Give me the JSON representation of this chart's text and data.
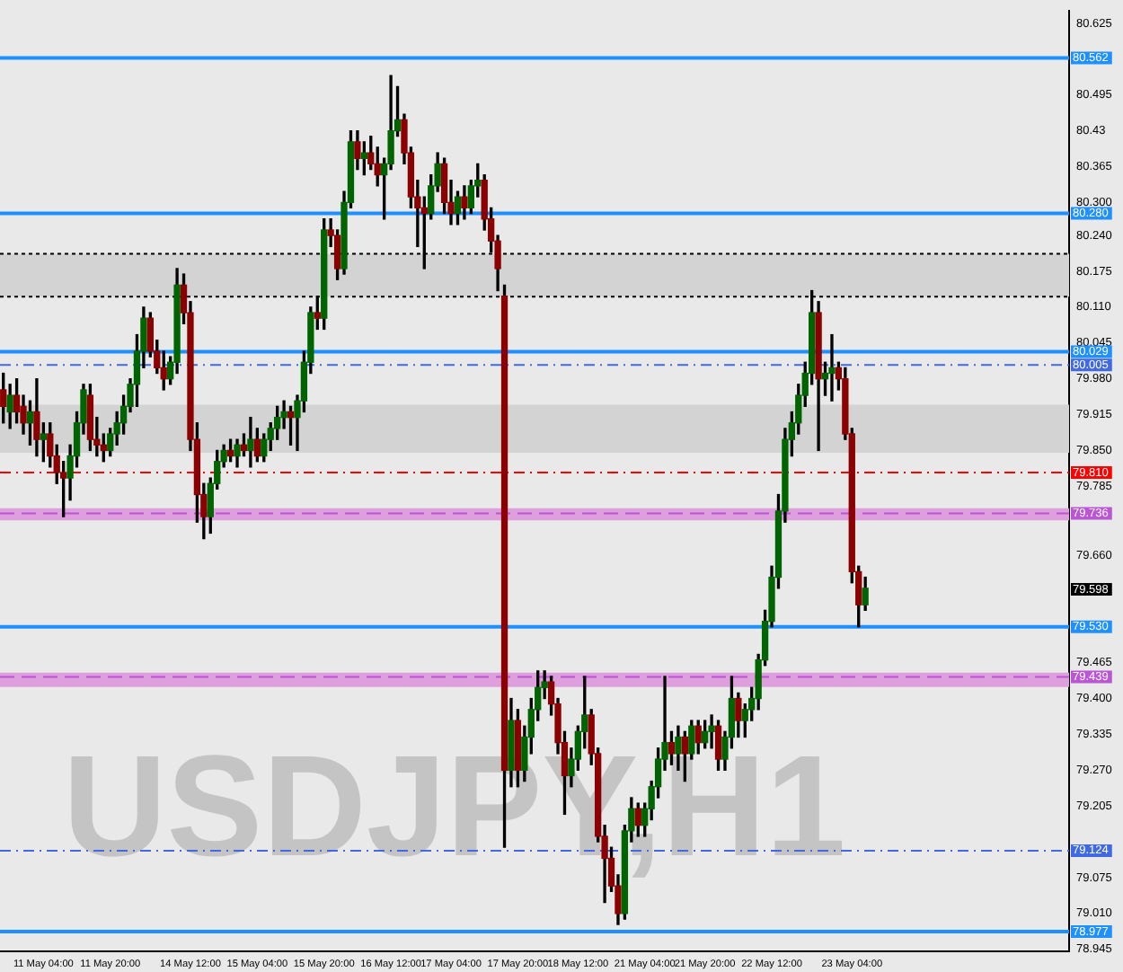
{
  "chart_data": {
    "type": "candlestick",
    "categories": [
      null,
      null,
      null,
      null,
      null,
      null,
      "11 May 04:00",
      null,
      null,
      null,
      null,
      null,
      null,
      null,
      null,
      null,
      "11 May 20:00",
      null,
      null,
      null,
      null,
      null,
      null,
      null,
      null,
      null,
      null,
      null,
      "14 May 12:00",
      null,
      null,
      null,
      null,
      null,
      null,
      null,
      null,
      null,
      "15 May 04:00",
      null,
      null,
      null,
      null,
      null,
      null,
      null,
      null,
      null,
      "15 May 20:00",
      null,
      null,
      null,
      null,
      null,
      null,
      null,
      null,
      null,
      "16 May 12:00",
      null,
      null,
      null,
      null,
      null,
      null,
      null,
      null,
      "17 May 04:00",
      null,
      null,
      null,
      null,
      null,
      null,
      null,
      null,
      null,
      "17 May 20:00",
      null,
      null,
      null,
      null,
      null,
      null,
      null,
      null,
      "18 May 12:00",
      null,
      null,
      null,
      null,
      null,
      null,
      null,
      null,
      null,
      "21 May 04:00",
      null,
      null,
      null,
      null,
      null,
      null,
      null,
      null,
      "21 May 20:00",
      null,
      null,
      null,
      null,
      null,
      null,
      null,
      null,
      null,
      "22 May 12:00",
      null,
      null,
      null,
      null,
      null,
      null,
      null,
      null,
      null,
      null,
      null,
      "23 May 04:00",
      null,
      null,
      null,
      null,
      null,
      null,
      null,
      null,
      null,
      null,
      null,
      null,
      null,
      null,
      null,
      null,
      null,
      null,
      null,
      null,
      null,
      null,
      null,
      null,
      null,
      null,
      null,
      null,
      null,
      null,
      null,
      null
    ],
    "ohlc": [
      [
        79.96,
        79.99,
        79.9,
        79.93
      ],
      [
        79.92,
        79.97,
        79.89,
        79.95
      ],
      [
        79.95,
        79.98,
        79.9,
        79.92
      ],
      [
        79.93,
        79.95,
        79.88,
        79.9
      ],
      [
        79.9,
        79.94,
        79.86,
        79.92
      ],
      [
        79.92,
        79.98,
        79.84,
        79.87
      ],
      [
        79.87,
        79.9,
        79.83,
        79.88
      ],
      [
        79.88,
        79.9,
        79.82,
        79.84
      ],
      [
        79.84,
        79.86,
        79.79,
        79.81
      ],
      [
        79.81,
        79.83,
        79.73,
        79.8
      ],
      [
        79.8,
        79.86,
        79.76,
        79.84
      ],
      [
        79.84,
        79.92,
        79.82,
        79.9
      ],
      [
        79.9,
        79.97,
        79.88,
        79.96
      ],
      [
        79.95,
        79.97,
        79.85,
        79.87
      ],
      [
        79.87,
        79.91,
        79.84,
        79.86
      ],
      [
        79.86,
        79.88,
        79.83,
        79.85
      ],
      [
        79.85,
        79.89,
        79.84,
        79.88
      ],
      [
        79.88,
        79.92,
        79.86,
        79.9
      ],
      [
        79.9,
        79.95,
        79.88,
        79.93
      ],
      [
        79.93,
        79.98,
        79.92,
        79.97
      ],
      [
        79.97,
        80.06,
        79.93,
        80.03
      ],
      [
        80.03,
        80.11,
        80.0,
        80.09
      ],
      [
        80.09,
        80.1,
        80.02,
        80.03
      ],
      [
        80.03,
        80.05,
        79.99,
        80.0
      ],
      [
        80.0,
        80.03,
        79.96,
        79.98
      ],
      [
        79.98,
        80.02,
        79.97,
        80.01
      ],
      [
        80.01,
        80.18,
        79.99,
        80.15
      ],
      [
        80.15,
        80.17,
        80.08,
        80.1
      ],
      [
        80.1,
        80.12,
        79.85,
        79.87
      ],
      [
        79.87,
        79.9,
        79.72,
        79.77
      ],
      [
        79.77,
        79.79,
        79.69,
        79.73
      ],
      [
        79.73,
        79.8,
        79.7,
        79.79
      ],
      [
        79.79,
        79.85,
        79.78,
        79.83
      ],
      [
        79.83,
        79.86,
        79.82,
        79.85
      ],
      [
        79.85,
        79.87,
        79.83,
        79.84
      ],
      [
        79.84,
        79.87,
        79.82,
        79.86
      ],
      [
        79.86,
        79.88,
        79.84,
        79.85
      ],
      [
        79.85,
        79.91,
        79.82,
        79.87
      ],
      [
        79.87,
        79.89,
        79.83,
        79.84
      ],
      [
        79.84,
        79.88,
        79.83,
        79.87
      ],
      [
        79.87,
        79.9,
        79.85,
        79.89
      ],
      [
        79.89,
        79.93,
        79.87,
        79.91
      ],
      [
        79.91,
        79.94,
        79.89,
        79.92
      ],
      [
        79.92,
        79.93,
        79.86,
        79.91
      ],
      [
        79.91,
        79.95,
        79.85,
        79.94
      ],
      [
        79.94,
        80.03,
        79.92,
        80.01
      ],
      [
        80.01,
        80.11,
        79.99,
        80.1
      ],
      [
        80.1,
        80.13,
        80.07,
        80.09
      ],
      [
        80.09,
        80.27,
        80.07,
        80.25
      ],
      [
        80.25,
        80.27,
        80.22,
        80.24
      ],
      [
        80.24,
        80.25,
        80.16,
        80.18
      ],
      [
        80.18,
        80.32,
        80.17,
        80.3
      ],
      [
        80.3,
        80.43,
        80.29,
        80.41
      ],
      [
        80.41,
        80.43,
        80.36,
        80.38
      ],
      [
        80.38,
        80.41,
        80.35,
        80.39
      ],
      [
        80.39,
        80.42,
        80.36,
        80.37
      ],
      [
        80.37,
        80.4,
        80.33,
        80.35
      ],
      [
        80.35,
        80.38,
        80.27,
        80.37
      ],
      [
        80.37,
        80.53,
        80.36,
        80.43
      ],
      [
        80.43,
        80.51,
        80.42,
        80.45
      ],
      [
        80.45,
        80.46,
        80.37,
        80.39
      ],
      [
        80.39,
        80.4,
        80.29,
        80.31
      ],
      [
        80.31,
        80.34,
        80.22,
        80.29
      ],
      [
        80.29,
        80.31,
        80.18,
        80.28
      ],
      [
        80.28,
        80.35,
        80.27,
        80.33
      ],
      [
        80.33,
        80.39,
        80.32,
        80.37
      ],
      [
        80.37,
        80.38,
        80.28,
        80.3
      ],
      [
        80.3,
        80.34,
        80.26,
        80.28
      ],
      [
        80.28,
        80.32,
        80.26,
        80.31
      ],
      [
        80.31,
        80.33,
        80.27,
        80.29
      ],
      [
        80.29,
        80.34,
        80.28,
        80.33
      ],
      [
        80.33,
        80.37,
        80.31,
        80.34
      ],
      [
        80.34,
        80.35,
        80.25,
        80.27
      ],
      [
        80.27,
        80.29,
        80.21,
        80.23
      ],
      [
        80.23,
        80.24,
        80.14,
        80.18
      ],
      [
        80.13,
        80.15,
        79.13,
        79.27
      ],
      [
        79.27,
        79.4,
        79.24,
        79.36
      ],
      [
        79.36,
        79.38,
        79.24,
        79.27
      ],
      [
        79.27,
        79.35,
        79.25,
        79.33
      ],
      [
        79.33,
        79.4,
        79.3,
        79.38
      ],
      [
        79.38,
        79.45,
        79.36,
        79.42
      ],
      [
        79.42,
        79.45,
        79.4,
        79.43
      ],
      [
        79.43,
        79.44,
        79.37,
        79.39
      ],
      [
        79.39,
        79.4,
        79.3,
        79.32
      ],
      [
        79.32,
        79.34,
        79.19,
        79.26
      ],
      [
        79.26,
        79.31,
        79.24,
        79.29
      ],
      [
        79.29,
        79.35,
        79.27,
        79.34
      ],
      [
        79.34,
        79.44,
        79.31,
        79.37
      ],
      [
        79.37,
        79.38,
        79.28,
        79.3
      ],
      [
        79.3,
        79.31,
        79.14,
        79.15
      ],
      [
        79.15,
        79.17,
        79.03,
        79.11
      ],
      [
        79.11,
        79.13,
        79.05,
        79.06
      ],
      [
        79.06,
        79.08,
        78.99,
        79.01
      ],
      [
        79.01,
        79.17,
        79.0,
        79.16
      ],
      [
        79.16,
        79.22,
        79.14,
        79.2
      ],
      [
        79.2,
        79.21,
        79.15,
        79.17
      ],
      [
        79.17,
        79.21,
        79.15,
        79.2
      ],
      [
        79.2,
        79.25,
        79.18,
        79.24
      ],
      [
        79.24,
        79.31,
        79.22,
        79.29
      ],
      [
        79.29,
        79.44,
        79.27,
        79.32
      ],
      [
        79.32,
        79.34,
        79.28,
        79.3
      ],
      [
        79.3,
        79.35,
        79.27,
        79.33
      ],
      [
        79.33,
        79.34,
        79.25,
        79.3
      ],
      [
        79.3,
        79.36,
        79.29,
        79.35
      ],
      [
        79.35,
        79.36,
        79.3,
        79.32
      ],
      [
        79.32,
        79.36,
        79.31,
        79.34
      ],
      [
        79.34,
        79.37,
        79.31,
        79.35
      ],
      [
        79.35,
        79.36,
        79.27,
        79.29
      ],
      [
        79.29,
        79.34,
        79.27,
        79.33
      ],
      [
        79.33,
        79.44,
        79.31,
        79.4
      ],
      [
        79.4,
        79.41,
        79.33,
        79.36
      ],
      [
        79.36,
        79.39,
        79.33,
        79.38
      ],
      [
        79.38,
        79.42,
        79.36,
        79.4
      ],
      [
        79.4,
        79.48,
        79.38,
        79.47
      ],
      [
        79.47,
        79.56,
        79.46,
        79.54
      ],
      [
        79.54,
        79.64,
        79.53,
        79.62
      ],
      [
        79.62,
        79.77,
        79.6,
        79.74
      ],
      [
        79.74,
        79.89,
        79.72,
        79.87
      ],
      [
        79.87,
        79.92,
        79.84,
        79.9
      ],
      [
        79.9,
        79.97,
        79.88,
        79.95
      ],
      [
        79.95,
        80.01,
        79.93,
        79.99
      ],
      [
        79.99,
        80.14,
        79.97,
        80.1
      ],
      [
        80.1,
        80.12,
        79.85,
        79.98
      ],
      [
        79.98,
        80.01,
        79.95,
        79.99
      ],
      [
        79.99,
        80.06,
        79.94,
        80.0
      ],
      [
        80.0,
        80.01,
        79.96,
        79.98
      ],
      [
        79.98,
        80.0,
        79.87,
        79.88
      ],
      [
        79.88,
        79.89,
        79.61,
        79.63
      ],
      [
        79.63,
        79.64,
        79.53,
        79.57
      ],
      [
        79.57,
        79.62,
        79.56,
        79.6
      ],
      null,
      null,
      null,
      null,
      null,
      null,
      null,
      null,
      null,
      null,
      null,
      null,
      null,
      null,
      null,
      null,
      null,
      null,
      null,
      null,
      null,
      null,
      null,
      null,
      null,
      null,
      null,
      null,
      null,
      null
    ],
    "ylim": [
      78.942,
      80.648
    ],
    "yticks": [
      80.625,
      80.495,
      80.43,
      80.365,
      {
        "value": 80.3,
        "label": "80.300"
      },
      {
        "value": 80.24,
        "label": "80.240"
      },
      80.175,
      {
        "value": 80.11,
        "label": "80.110"
      },
      80.045,
      {
        "value": 79.98,
        "label": "79.980"
      },
      79.915,
      {
        "value": 79.85,
        "label": "79.850"
      },
      79.785,
      {
        "value": 79.66,
        "label": "79.660"
      },
      79.465,
      {
        "value": 79.4,
        "label": "79.400"
      },
      79.335,
      {
        "value": 79.27,
        "label": "79.270"
      },
      79.205,
      79.075,
      {
        "value": 79.01,
        "label": "79.010"
      },
      78.945
    ],
    "ref_lines": [
      {
        "axis": "y",
        "value": 80.562,
        "label": "80.562",
        "color": "#1e90ff",
        "line_style": "solid"
      },
      {
        "axis": "y",
        "value": 80.28,
        "label": "80.280",
        "color": "#1e90ff",
        "line_style": "solid"
      },
      {
        "axis": "y",
        "value": 80.029,
        "label": "80.029",
        "color": "#1e90ff",
        "line_style": "solid"
      },
      {
        "axis": "y",
        "value": 79.53,
        "label": "79.530",
        "color": "#1e90ff",
        "line_style": "solid"
      },
      {
        "axis": "y",
        "value": 78.977,
        "label": "78.977",
        "color": "#1e90ff",
        "line_style": "solid"
      },
      {
        "axis": "y",
        "value": 80.005,
        "label": "80.005",
        "color": "#4169e1",
        "line_style": "dashdot"
      },
      {
        "axis": "y",
        "value": 79.124,
        "label": "79.124",
        "color": "#4169e1",
        "line_style": "dashdot"
      },
      {
        "axis": "y",
        "value": 79.81,
        "label": "79.810",
        "color": "#ff0000",
        "line_style": "dashdot"
      },
      {
        "axis": "y",
        "value": 79.736,
        "label": "79.736",
        "color": "#ba55d3",
        "line_style": "dashed"
      },
      {
        "axis": "y",
        "value": 79.439,
        "label": "79.439",
        "color": "#ba55d3",
        "line_style": "dashed"
      },
      {
        "axis": "y",
        "value": 80.207,
        "label": null,
        "color": "#000000",
        "line_style": "dotted"
      },
      {
        "axis": "y",
        "value": 80.129,
        "label": null,
        "color": "#000000",
        "line_style": "dotted"
      }
    ],
    "bands": [
      {
        "axis": "y",
        "from": 80.129,
        "to": 80.207,
        "color": "#d3d3d3"
      },
      {
        "axis": "y",
        "from": 79.846,
        "to": 79.933,
        "color": "#d3d3d3"
      },
      {
        "axis": "y",
        "from": 79.723,
        "to": 79.745,
        "color": "#dda0dd"
      },
      {
        "axis": "y",
        "from": 79.421,
        "to": 79.447,
        "color": "#dda0dd"
      }
    ],
    "annotations": [
      "USDJPY,H1",
      {
        "text": "79.598",
        "y": 79.598
      }
    ]
  }
}
